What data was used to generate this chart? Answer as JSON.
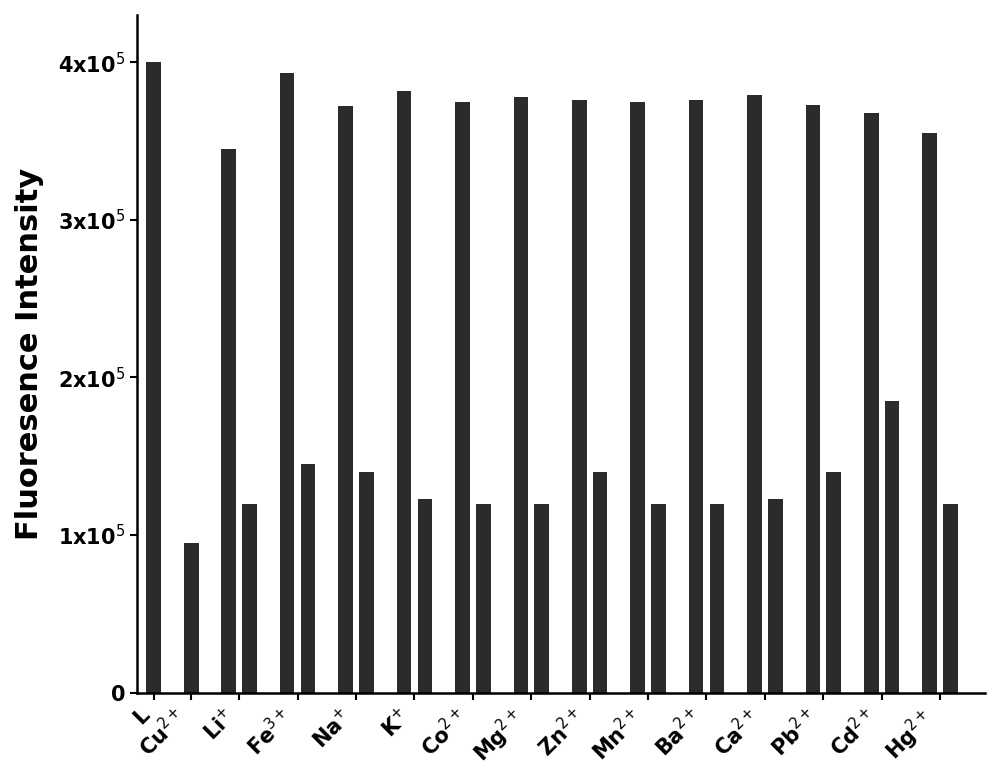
{
  "all_values": [
    400000,
    95000,
    345000,
    120000,
    393000,
    145000,
    372000,
    140000,
    382000,
    123000,
    375000,
    120000,
    378000,
    120000,
    376000,
    140000,
    375000,
    120000,
    376000,
    120000,
    379000,
    123000,
    373000,
    140000,
    368000,
    185000,
    355000,
    120000
  ],
  "bar_color": "#2b2b2b",
  "ylabel": "Fluoresence Intensity",
  "ylim": [
    0,
    430000
  ],
  "yticks": [
    0,
    100000,
    200000,
    300000,
    400000
  ],
  "ytick_labels": [
    "0",
    "1x10$^5$",
    "2x10$^5$",
    "3x10$^5$",
    "4x10$^5$"
  ],
  "figsize": [
    10.0,
    7.83
  ],
  "dpi": 100,
  "ylabel_fontsize": 22,
  "tick_fontsize": 15
}
